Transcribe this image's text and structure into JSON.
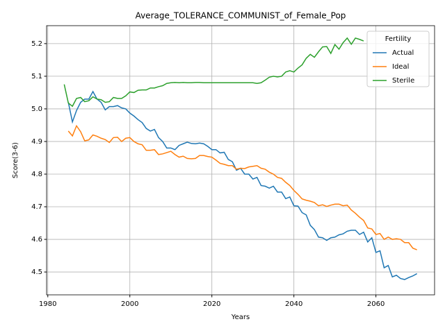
{
  "chart_data": {
    "type": "line",
    "title": "Average_TOLERANCE_COMMUNIST_of_Female_Pop",
    "xlabel": "Years",
    "ylabel": "Score(3-6)",
    "legend_title": "Fertility",
    "legend": "upper right",
    "grid": true,
    "xlim": [
      1979.7,
      2074.3
    ],
    "ylim": [
      4.43,
      5.255
    ],
    "xticks": [
      1980,
      2000,
      2020,
      2040,
      2060
    ],
    "yticks": [
      4.5,
      4.6,
      4.7,
      4.8,
      4.9,
      {
        "value": 5,
        "label": "5.0"
      },
      5.1,
      5.2
    ],
    "x": [
      1984,
      1985,
      1986,
      1987,
      1988,
      1989,
      1990,
      1991,
      1992,
      1993,
      1994,
      1995,
      1996,
      1997,
      1998,
      1999,
      2000,
      2001,
      2002,
      2003,
      2004,
      2005,
      2006,
      2007,
      2008,
      2009,
      2010,
      2011,
      2012,
      2013,
      2014,
      2015,
      2016,
      2017,
      2018,
      2019,
      2020,
      2021,
      2022,
      2023,
      2024,
      2025,
      2026,
      2027,
      2028,
      2029,
      2030,
      2031,
      2032,
      2033,
      2034,
      2035,
      2036,
      2037,
      2038,
      2039,
      2040,
      2041,
      2042,
      2043,
      2044,
      2045,
      2046,
      2047,
      2048,
      2049,
      2050,
      2051,
      2052,
      2053,
      2054,
      2055,
      2056,
      2057,
      2058,
      2059,
      2060,
      2061,
      2062,
      2063,
      2064,
      2065,
      2066,
      2067,
      2068,
      2069,
      2070
    ],
    "series": [
      {
        "name": "Actual",
        "color": "#1f77b4",
        "values": [
          null,
          5.02,
          4.96,
          4.995,
          5.02,
          5.03,
          5.03,
          5.053,
          5.03,
          5.02,
          4.997,
          5.007,
          5.007,
          5.01,
          5.003,
          5.0,
          4.987,
          4.978,
          4.967,
          4.958,
          4.94,
          4.932,
          4.937,
          4.912,
          4.9,
          4.88,
          4.88,
          4.875,
          4.888,
          4.893,
          4.898,
          4.894,
          4.893,
          4.895,
          4.893,
          4.885,
          4.875,
          4.875,
          4.865,
          4.867,
          4.845,
          4.838,
          4.812,
          4.818,
          4.8,
          4.8,
          4.785,
          4.79,
          4.765,
          4.763,
          4.757,
          4.763,
          4.745,
          4.745,
          4.725,
          4.73,
          4.703,
          4.702,
          4.682,
          4.675,
          4.643,
          4.63,
          4.607,
          4.605,
          4.597,
          4.605,
          4.607,
          4.614,
          4.617,
          4.625,
          4.628,
          4.628,
          4.615,
          4.622,
          4.592,
          4.605,
          4.56,
          4.565,
          4.513,
          4.52,
          4.485,
          4.49,
          4.48,
          4.477,
          4.483,
          4.488,
          4.495
        ]
      },
      {
        "name": "Ideal",
        "color": "#ff7f0e",
        "values": [
          null,
          4.932,
          4.917,
          4.948,
          4.93,
          4.902,
          4.905,
          4.92,
          4.916,
          4.91,
          4.906,
          4.897,
          4.912,
          4.913,
          4.9,
          4.91,
          4.912,
          4.9,
          4.893,
          4.89,
          4.873,
          4.873,
          4.875,
          4.86,
          4.862,
          4.866,
          4.87,
          4.86,
          4.852,
          4.855,
          4.848,
          4.847,
          4.848,
          4.857,
          4.857,
          4.854,
          4.852,
          4.843,
          4.833,
          4.83,
          4.826,
          4.826,
          4.815,
          4.818,
          4.817,
          4.822,
          4.824,
          4.826,
          4.818,
          4.815,
          4.806,
          4.8,
          4.79,
          4.787,
          4.775,
          4.765,
          4.75,
          4.738,
          4.724,
          4.72,
          4.717,
          4.713,
          4.703,
          4.706,
          4.701,
          4.705,
          4.708,
          4.708,
          4.703,
          4.705,
          4.69,
          4.68,
          4.668,
          4.658,
          4.635,
          4.632,
          4.615,
          4.618,
          4.6,
          4.607,
          4.6,
          4.602,
          4.6,
          4.59,
          4.59,
          4.573,
          4.568
        ]
      },
      {
        "name": "Sterile",
        "color": "#2ca02c",
        "values": [
          5.075,
          5.018,
          5.008,
          5.032,
          5.035,
          5.022,
          5.025,
          5.037,
          5.03,
          5.028,
          5.02,
          5.022,
          5.035,
          5.032,
          5.032,
          5.04,
          5.052,
          5.05,
          5.057,
          5.058,
          5.058,
          5.064,
          5.064,
          5.068,
          5.071,
          5.078,
          5.08,
          5.081,
          5.08,
          5.081,
          5.08,
          5.08,
          5.081,
          5.081,
          5.08,
          5.08,
          5.08,
          5.08,
          5.08,
          5.08,
          5.08,
          5.08,
          5.08,
          5.08,
          5.08,
          5.08,
          5.08,
          5.078,
          5.08,
          5.088,
          5.097,
          5.1,
          5.098,
          5.1,
          5.113,
          5.117,
          5.113,
          5.125,
          5.135,
          5.155,
          5.167,
          5.158,
          5.175,
          5.19,
          5.191,
          5.17,
          5.197,
          5.183,
          5.203,
          5.217,
          5.198,
          5.217,
          5.213,
          5.208,
          null,
          null,
          null,
          null,
          null,
          null,
          null,
          null,
          null,
          null,
          null,
          null,
          null
        ]
      }
    ]
  }
}
